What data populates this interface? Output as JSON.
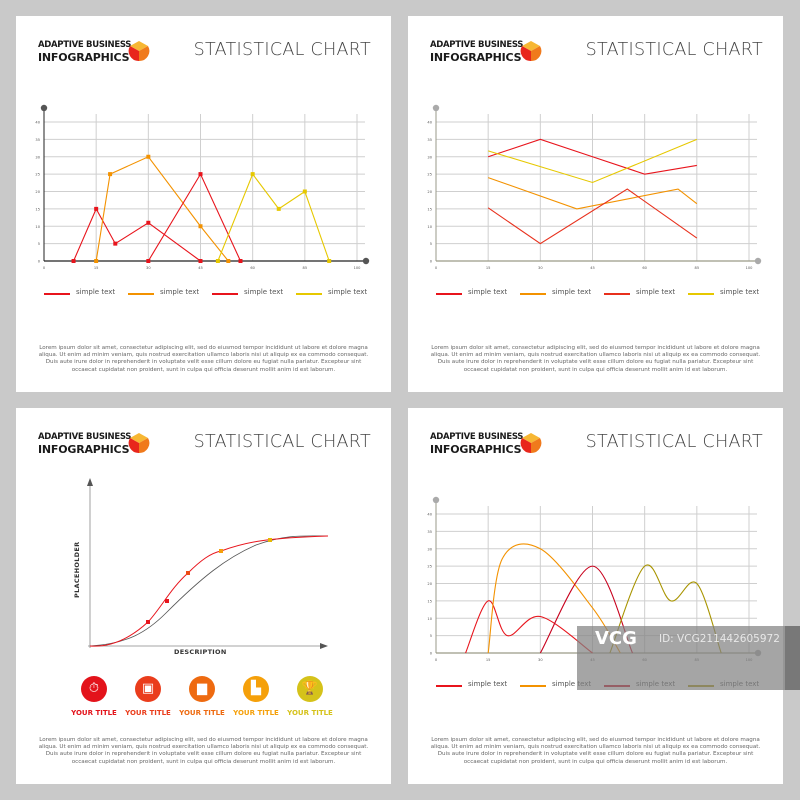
{
  "brand": {
    "line1": "ADAPTIVE BUSINESS",
    "line2": "INFOGRAPHICS"
  },
  "title": "STATISTICAL CHART",
  "lorem": "Lorem ipsum dolor sit amet, consectetur adipiscing elit, sed do eiusmod tempor incididunt ut labore et dolore magna aliqua. Ut enim ad minim veniam, quis nostrud exercitation ullamco laboris nisi ut aliquip ex ea commodo consequat. Duis aute irure dolor in reprehenderit in voluptate velit esse cillum dolore eu fugiat nulla pariatur. Excepteur sint occaecat cupidatat non proident, sunt in culpa qui officia deserunt mollit anim id est laborum.",
  "logo_colors": [
    "#f7b733",
    "#e8261c",
    "#f07a1c"
  ],
  "panel3": {
    "ylabel": "PLACEHOLDER",
    "xlabel": "DESCRIPTION",
    "point_colors": [
      "#e8141c",
      "#e8141c",
      "#ee4a14",
      "#f5a00a",
      "#e6b800"
    ],
    "icons": [
      {
        "name": "stopwatch-icon",
        "glyph": "⏱",
        "label": "YOUR TITLE",
        "color": "#e3131b"
      },
      {
        "name": "box-icon",
        "glyph": "▣",
        "label": "YOUR TITLE",
        "color": "#ea3d1c"
      },
      {
        "name": "bar-chart-icon",
        "glyph": "▆",
        "label": "YOUR TITLE",
        "color": "#ee6a10"
      },
      {
        "name": "podium-icon",
        "glyph": "▙",
        "label": "YOUR TITLE",
        "color": "#f5a00a"
      },
      {
        "name": "trophy-icon",
        "glyph": "🏆",
        "label": "YOUR TITLE",
        "color": "#d5c21a"
      }
    ]
  },
  "watermark": {
    "logo": "VCG",
    "id": "ID: VCG211442605972"
  },
  "chart_data": [
    {
      "type": "line",
      "y_ticks": [
        "0",
        "5",
        "10",
        "15",
        "20",
        "25",
        "30",
        "35",
        "40"
      ],
      "x_ticks": [
        "0",
        "15",
        "30",
        "45",
        "60",
        "85",
        "100"
      ],
      "ylim": [
        0,
        40
      ],
      "grid": true,
      "legend": "bottom",
      "markers": true,
      "series": [
        {
          "name": "simple text",
          "color": "#e8141c",
          "x": [
            8.5,
            15,
            20.5,
            30,
            45
          ],
          "y": [
            0,
            15,
            5,
            11,
            0
          ]
        },
        {
          "name": "simple text",
          "color": "#f39200",
          "x": [
            15,
            19,
            30,
            45,
            53
          ],
          "y": [
            0,
            25,
            30,
            10,
            0
          ]
        },
        {
          "name": "simple text",
          "color": "#e8141c",
          "x": [
            30,
            45,
            56.5
          ],
          "y": [
            0,
            25,
            0
          ]
        },
        {
          "name": "simple text",
          "color": "#e6c800",
          "x": [
            50,
            60,
            72.5,
            85,
            92
          ],
          "y": [
            0,
            25,
            15,
            20,
            0
          ]
        }
      ]
    },
    {
      "type": "line",
      "y_ticks": [
        "0",
        "5",
        "10",
        "15",
        "20",
        "25",
        "30",
        "35",
        "40"
      ],
      "x_ticks": [
        "0",
        "15",
        "30",
        "45",
        "60",
        "85",
        "100"
      ],
      "ylim": [
        0,
        40
      ],
      "grid": true,
      "legend": "bottom",
      "markers": false,
      "series": [
        {
          "name": "simple text",
          "color": "#e8141c",
          "x": [
            15,
            30,
            45,
            60,
            85
          ],
          "y": [
            30,
            35,
            30,
            25,
            27.5
          ]
        },
        {
          "name": "simple text",
          "color": "#f39200",
          "x": [
            15,
            40.5,
            76,
            85
          ],
          "y": [
            24,
            15,
            20.7,
            16.5
          ]
        },
        {
          "name": "simple text",
          "color": "#e8301c",
          "x": [
            15,
            30,
            55,
            85
          ],
          "y": [
            15.3,
            5,
            20.7,
            6.6
          ]
        },
        {
          "name": "simple text",
          "color": "#e6c800",
          "x": [
            15,
            45,
            85
          ],
          "y": [
            31.7,
            22.6,
            35
          ]
        }
      ]
    },
    {
      "type": "line",
      "y_ticks": [
        "0",
        "5",
        "10",
        "15",
        "20",
        "25",
        "30",
        "35",
        "40"
      ],
      "x_ticks": [
        "0",
        "15",
        "30",
        "45",
        "60",
        "85",
        "100"
      ],
      "ylim": [
        0,
        40
      ],
      "grid": true,
      "legend": "bottom",
      "markers": false,
      "smooth": true,
      "series": [
        {
          "name": "simple text",
          "color": "#e8141c",
          "x": [
            8.5,
            15,
            20.5,
            30,
            45
          ],
          "y": [
            0,
            15,
            5,
            10.5,
            0
          ]
        },
        {
          "name": "simple text",
          "color": "#f39200",
          "x": [
            15,
            19,
            30,
            45,
            53
          ],
          "y": [
            0,
            27,
            30,
            13,
            0
          ]
        },
        {
          "name": "simple text",
          "color": "#c8001c",
          "x": [
            30,
            45,
            56.5
          ],
          "y": [
            0,
            25,
            0
          ]
        },
        {
          "name": "simple text",
          "color": "#a89400",
          "x": [
            50,
            60,
            72.5,
            85,
            92
          ],
          "y": [
            0,
            25,
            15,
            20,
            0
          ]
        }
      ]
    }
  ]
}
